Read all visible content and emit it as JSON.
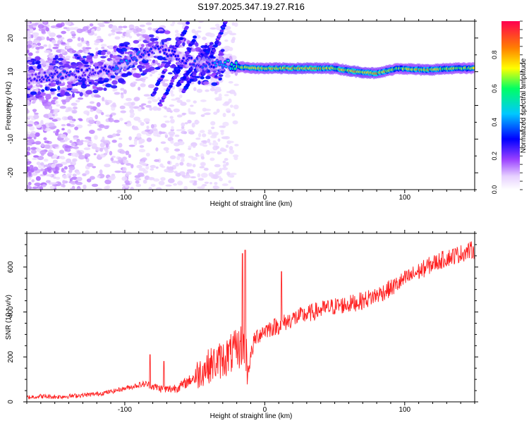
{
  "title": "S197.2025.347.19.27.R16",
  "chart_data": [
    {
      "type": "heatmap",
      "title": "S197.2025.347.19.27.R16",
      "xlabel": "Height of straight line (km)",
      "ylabel": "Frequency (Hz)",
      "xlim": [
        -170,
        150
      ],
      "ylim": [
        -25,
        25
      ],
      "xticks": [
        -100,
        0,
        100
      ],
      "yticks": [
        -20,
        -10,
        0,
        10,
        20
      ],
      "colorbar": {
        "label": "Normalized spectral amplitude",
        "range": [
          0,
          1
        ],
        "ticks": [
          0.0,
          0.2,
          0.4,
          0.6,
          0.8
        ],
        "colors": [
          "#ffffff",
          "#d8b8ff",
          "#7a00ff",
          "#0000ff",
          "#00c8ff",
          "#00ff64",
          "#ffff00",
          "#ff8000",
          "#ff0050"
        ]
      },
      "ridge": [
        {
          "x": -165,
          "f": 8,
          "a": 0.25
        },
        {
          "x": -150,
          "f": 9,
          "a": 0.35
        },
        {
          "x": -135,
          "f": 9,
          "a": 0.3
        },
        {
          "x": -120,
          "f": 10,
          "a": 0.3
        },
        {
          "x": -105,
          "f": 11.5,
          "a": 0.4
        },
        {
          "x": -95,
          "f": 14,
          "a": 0.4
        },
        {
          "x": -85,
          "f": 15.5,
          "a": 0.35
        },
        {
          "x": -75,
          "f": 17,
          "a": 0.3
        },
        {
          "x": -60,
          "f": 14,
          "a": 0.3
        },
        {
          "x": -45,
          "f": 12,
          "a": 0.35
        },
        {
          "x": -30,
          "f": 12.5,
          "a": 0.45
        },
        {
          "x": -20,
          "f": 11.5,
          "a": 0.7
        },
        {
          "x": -5,
          "f": 11,
          "a": 0.75
        },
        {
          "x": 10,
          "f": 11,
          "a": 0.8
        },
        {
          "x": 30,
          "f": 11,
          "a": 0.85
        },
        {
          "x": 50,
          "f": 11,
          "a": 0.75
        },
        {
          "x": 65,
          "f": 10,
          "a": 0.85
        },
        {
          "x": 80,
          "f": 9.5,
          "a": 0.8
        },
        {
          "x": 95,
          "f": 11,
          "a": 0.7
        },
        {
          "x": 115,
          "f": 10.5,
          "a": 0.8
        },
        {
          "x": 135,
          "f": 11,
          "a": 0.75
        },
        {
          "x": 150,
          "f": 11,
          "a": 0.7
        }
      ]
    },
    {
      "type": "line",
      "xlabel": "Height of straight line (km)",
      "ylabel": "SNR (10 * v/v)",
      "xlim": [
        -170,
        150
      ],
      "ylim": [
        0,
        750
      ],
      "xticks": [
        -100,
        0,
        100
      ],
      "yticks": [
        0,
        200,
        400,
        600
      ],
      "color": "#ff2020",
      "series": [
        {
          "name": "SNR",
          "x": [
            -170,
            -160,
            -150,
            -140,
            -130,
            -120,
            -110,
            -100,
            -90,
            -85,
            -80,
            -75,
            -70,
            -65,
            -60,
            -55,
            -50,
            -45,
            -40,
            -35,
            -30,
            -25,
            -20,
            -18,
            -16,
            -14,
            -12,
            -10,
            -8,
            -6,
            -4,
            -2,
            0,
            5,
            10,
            15,
            20,
            30,
            40,
            50,
            60,
            70,
            80,
            90,
            100,
            110,
            120,
            130,
            140,
            150
          ],
          "values": [
            20,
            25,
            22,
            25,
            30,
            35,
            45,
            60,
            75,
            80,
            70,
            60,
            55,
            60,
            70,
            90,
            110,
            140,
            160,
            175,
            190,
            210,
            230,
            240,
            260,
            250,
            140,
            200,
            260,
            290,
            300,
            310,
            320,
            330,
            340,
            355,
            370,
            390,
            410,
            425,
            435,
            450,
            475,
            505,
            545,
            580,
            615,
            640,
            660,
            680
          ],
          "spikes": [
            {
              "x": -16,
              "y": 660
            },
            {
              "x": -14,
              "y": 675
            },
            {
              "x": 12,
              "y": 580
            },
            {
              "x": -82,
              "y": 210
            },
            {
              "x": -72,
              "y": 180
            }
          ],
          "noise": 40
        }
      ]
    }
  ]
}
